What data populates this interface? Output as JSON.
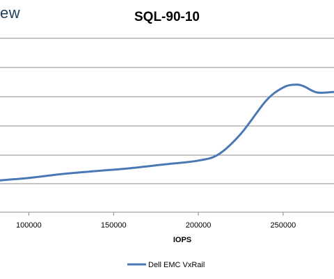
{
  "header": {
    "brand_fragment": "ew"
  },
  "chart_data": {
    "type": "line",
    "title": "SQL-90-10",
    "xlabel": "IOPS",
    "ylabel": "",
    "xlim": [
      83000,
      280000
    ],
    "ylim": [
      0,
      6
    ],
    "x_ticks": [
      100000,
      150000,
      200000,
      250000
    ],
    "x_tick_labels": [
      "100000",
      "150000",
      "200000",
      "250000"
    ],
    "grid": true,
    "legend_position": "bottom",
    "series": [
      {
        "name": "Dell EMC VxRail",
        "color": "#4a78b5",
        "x": [
          83000,
          100000,
          120000,
          140000,
          160000,
          180000,
          200000,
          212000,
          225000,
          240000,
          250000,
          257000,
          262000,
          270000,
          280000
        ],
        "y": [
          1.1,
          1.18,
          1.32,
          1.42,
          1.52,
          1.65,
          1.78,
          2.0,
          2.7,
          3.85,
          4.3,
          4.4,
          4.35,
          4.13,
          4.15
        ]
      }
    ]
  }
}
